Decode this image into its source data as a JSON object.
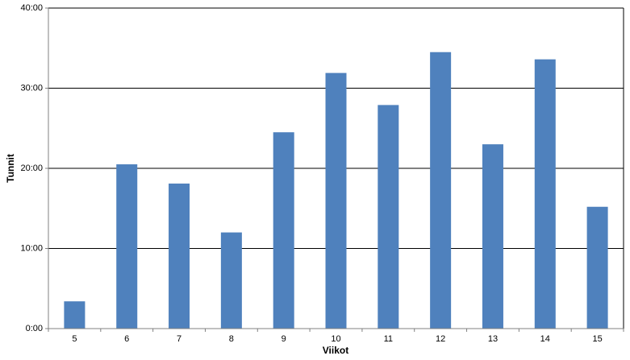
{
  "chart_data": {
    "type": "bar",
    "x_label": "Viikot",
    "y_label": "Tunnit",
    "categories": [
      "5",
      "6",
      "7",
      "8",
      "9",
      "10",
      "11",
      "12",
      "13",
      "14",
      "15"
    ],
    "values": [
      3.4,
      20.5,
      18.1,
      12.0,
      24.5,
      31.9,
      27.9,
      34.5,
      23.0,
      33.6,
      15.2
    ],
    "color": "#4f81bd",
    "ylim": [
      0,
      40
    ],
    "yticks": [
      {
        "value": 0,
        "label": "0:00"
      },
      {
        "value": 10,
        "label": "10:00"
      },
      {
        "value": 20,
        "label": "20:00"
      },
      {
        "value": 30,
        "label": "30:00"
      },
      {
        "value": 40,
        "label": "40:00"
      }
    ],
    "grid": true
  }
}
